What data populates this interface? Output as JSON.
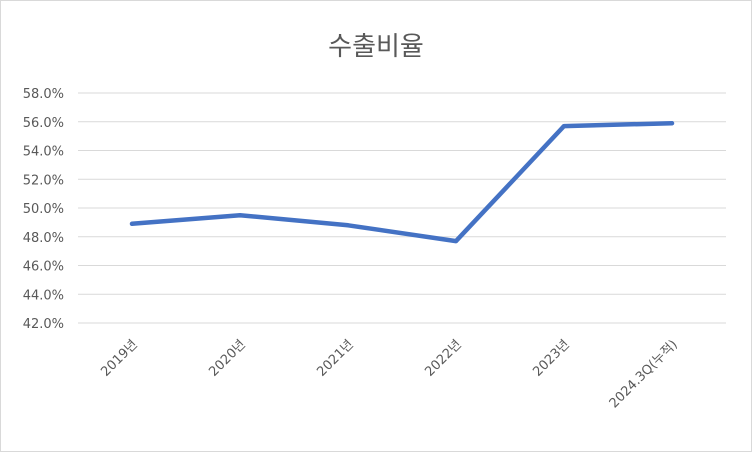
{
  "chart_data": {
    "type": "line",
    "title": "수출비율",
    "categories": [
      "2019년",
      "2020년",
      "2021년",
      "2022년",
      "2023년",
      "2024.3Q(누적)"
    ],
    "series": [
      {
        "values": [
          48.9,
          49.5,
          48.8,
          47.7,
          55.7,
          55.9
        ]
      }
    ],
    "ylim": [
      42.0,
      58.0
    ],
    "yticks": [
      "42.0%",
      "44.0%",
      "46.0%",
      "48.0%",
      "50.0%",
      "52.0%",
      "54.0%",
      "56.0%",
      "58.0%"
    ],
    "grid": true,
    "legend": "none",
    "colors": {
      "line": "#4472C4",
      "grid": "#d9d9d9",
      "text": "#595959"
    }
  }
}
